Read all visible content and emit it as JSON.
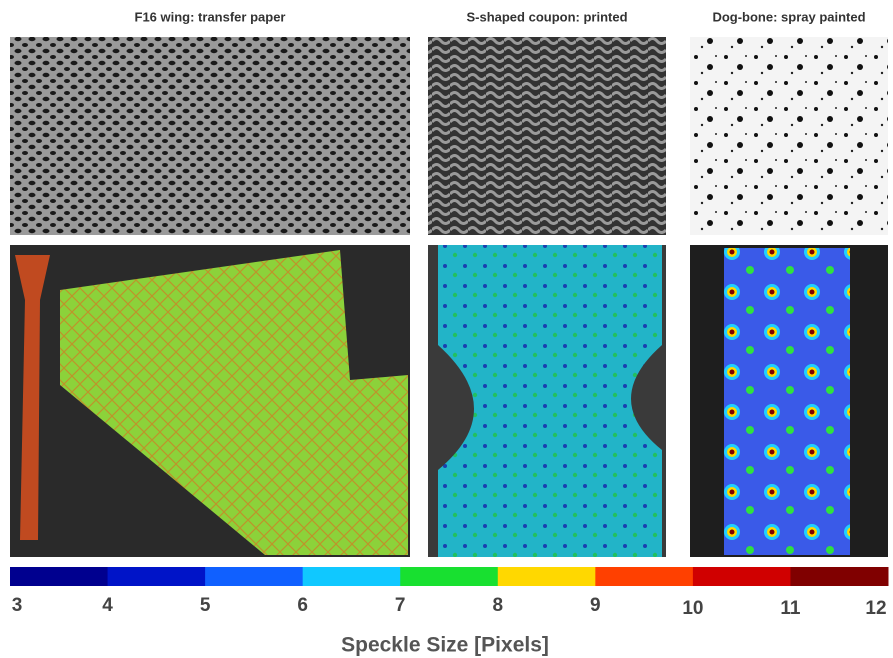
{
  "panels": [
    {
      "title": "F16 wing: transfer paper"
    },
    {
      "title": "S-shaped coupon: printed"
    },
    {
      "title": "Dog-bone: spray painted"
    }
  ],
  "colorbar": {
    "label": "Speckle Size [Pixels]",
    "ticks": [
      3,
      4,
      5,
      6,
      7,
      8,
      9,
      10,
      11,
      12
    ],
    "colors": [
      "#00008f",
      "#0014c8",
      "#1060ff",
      "#10c8ff",
      "#18e030",
      "#ffd800",
      "#ff4000",
      "#d00000",
      "#800000"
    ]
  }
}
